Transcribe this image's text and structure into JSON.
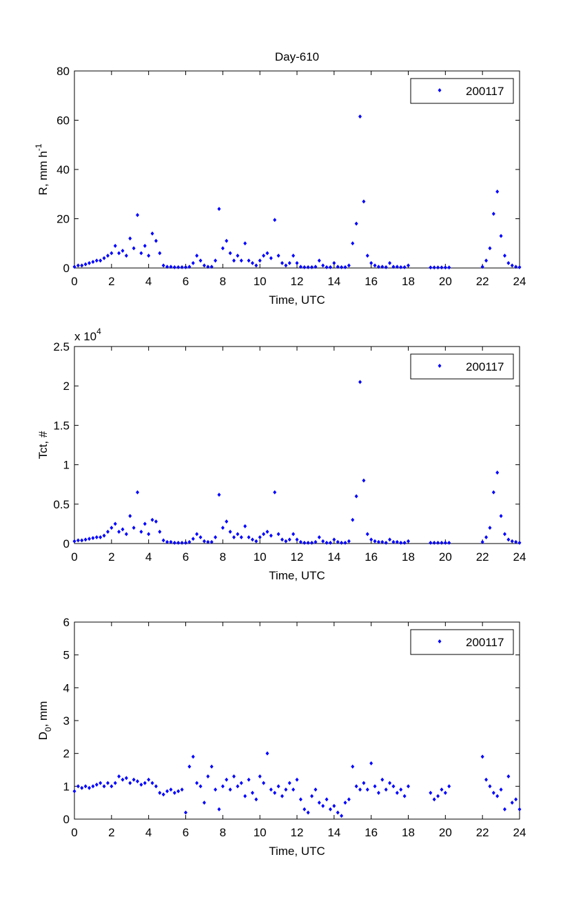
{
  "chart_data": [
    {
      "type": "scatter",
      "title": "Day-610",
      "ylabel": [
        "R, mm h",
        "-1"
      ],
      "xlabel": "Time, UTC",
      "xlim": [
        0,
        24
      ],
      "xticks": [
        0,
        2,
        4,
        6,
        8,
        10,
        12,
        14,
        16,
        18,
        20,
        22,
        24
      ],
      "ylim": [
        0,
        80
      ],
      "yticks": [
        0,
        20,
        40,
        60,
        80
      ],
      "grid": false,
      "legend": "ne",
      "series": [
        {
          "name": "200117",
          "color": "#0000ff",
          "x": [
            0,
            0.2,
            0.4,
            0.6,
            0.8,
            1,
            1.2,
            1.4,
            1.6,
            1.8,
            2,
            2.2,
            2.4,
            2.6,
            2.8,
            3,
            3.2,
            3.4,
            3.6,
            3.8,
            4,
            4.2,
            4.4,
            4.6,
            4.8,
            5,
            5.2,
            5.4,
            5.6,
            5.8,
            6,
            6.2,
            6.4,
            6.6,
            6.8,
            7,
            7.2,
            7.4,
            7.6,
            7.8,
            8,
            8.2,
            8.4,
            8.6,
            8.8,
            9,
            9.2,
            9.4,
            9.6,
            9.8,
            10,
            10.2,
            10.4,
            10.6,
            10.8,
            11,
            11.2,
            11.4,
            11.6,
            11.8,
            12,
            12.2,
            12.4,
            12.6,
            12.8,
            13,
            13.2,
            13.4,
            13.6,
            13.8,
            14,
            14.2,
            14.4,
            14.6,
            14.8,
            15,
            15.2,
            15.4,
            15.6,
            15.8,
            16,
            16.2,
            16.4,
            16.6,
            16.8,
            17,
            17.2,
            17.4,
            17.6,
            17.8,
            18,
            19.2,
            19.4,
            19.6,
            19.8,
            20,
            20.2,
            22,
            22.2,
            22.4,
            22.6,
            22.8,
            23,
            23.2,
            23.4,
            23.6,
            23.8,
            24
          ],
          "values": [
            0.5,
            1,
            1,
            1.5,
            2,
            2.5,
            3,
            3,
            4,
            5,
            6,
            9,
            6,
            7,
            5,
            12,
            8,
            21.5,
            6,
            9,
            5,
            14,
            11,
            6,
            1,
            0.5,
            0.5,
            0.3,
            0.3,
            0.3,
            0.3,
            0.5,
            2,
            5,
            3,
            1,
            0.5,
            0.5,
            3,
            24,
            8,
            11,
            6,
            3,
            5,
            3,
            10,
            3,
            2,
            1,
            3,
            5,
            6,
            4,
            19.5,
            5,
            2,
            1,
            2,
            5,
            2,
            0.5,
            0.3,
            0.3,
            0.3,
            0.5,
            3,
            1,
            0.3,
            0.3,
            2,
            0.5,
            0.3,
            0.3,
            1,
            10,
            18,
            61.5,
            27,
            5,
            2,
            1,
            0.5,
            0.5,
            0.3,
            2,
            0.5,
            0.5,
            0.3,
            0.3,
            1,
            0.2,
            0.2,
            0.2,
            0.2,
            0.2,
            0.2,
            0.5,
            3,
            8,
            22,
            31,
            13,
            5,
            2,
            1,
            0.5,
            0.3
          ]
        }
      ]
    },
    {
      "type": "scatter",
      "ylabel": "Tct, #",
      "xlabel": "Time, UTC",
      "y_multiplier": [
        "x 10",
        "4"
      ],
      "xlim": [
        0,
        24
      ],
      "xticks": [
        0,
        2,
        4,
        6,
        8,
        10,
        12,
        14,
        16,
        18,
        20,
        22,
        24
      ],
      "ylim": [
        0,
        2.5
      ],
      "yticks": [
        0,
        0.5,
        1,
        1.5,
        2,
        2.5
      ],
      "grid": false,
      "legend": "ne",
      "series": [
        {
          "name": "200117",
          "color": "#0000ff",
          "x": [
            0,
            0.2,
            0.4,
            0.6,
            0.8,
            1,
            1.2,
            1.4,
            1.6,
            1.8,
            2,
            2.2,
            2.4,
            2.6,
            2.8,
            3,
            3.2,
            3.4,
            3.6,
            3.8,
            4,
            4.2,
            4.4,
            4.6,
            4.8,
            5,
            5.2,
            5.4,
            5.6,
            5.8,
            6,
            6.2,
            6.4,
            6.6,
            6.8,
            7,
            7.2,
            7.4,
            7.6,
            7.8,
            8,
            8.2,
            8.4,
            8.6,
            8.8,
            9,
            9.2,
            9.4,
            9.6,
            9.8,
            10,
            10.2,
            10.4,
            10.6,
            10.8,
            11,
            11.2,
            11.4,
            11.6,
            11.8,
            12,
            12.2,
            12.4,
            12.6,
            12.8,
            13,
            13.2,
            13.4,
            13.6,
            13.8,
            14,
            14.2,
            14.4,
            14.6,
            14.8,
            15,
            15.2,
            15.4,
            15.6,
            15.8,
            16,
            16.2,
            16.4,
            16.6,
            16.8,
            17,
            17.2,
            17.4,
            17.6,
            17.8,
            18,
            19.2,
            19.4,
            19.6,
            19.8,
            20,
            20.2,
            22,
            22.2,
            22.4,
            22.6,
            22.8,
            23,
            23.2,
            23.4,
            23.6,
            23.8,
            24
          ],
          "values": [
            0.03,
            0.04,
            0.04,
            0.05,
            0.06,
            0.07,
            0.08,
            0.08,
            0.1,
            0.15,
            0.2,
            0.25,
            0.15,
            0.18,
            0.12,
            0.35,
            0.2,
            0.65,
            0.15,
            0.25,
            0.12,
            0.3,
            0.28,
            0.15,
            0.04,
            0.02,
            0.02,
            0.01,
            0.01,
            0.01,
            0.01,
            0.02,
            0.06,
            0.12,
            0.08,
            0.03,
            0.02,
            0.02,
            0.08,
            0.62,
            0.2,
            0.28,
            0.15,
            0.08,
            0.12,
            0.08,
            0.22,
            0.08,
            0.05,
            0.03,
            0.08,
            0.12,
            0.15,
            0.1,
            0.65,
            0.12,
            0.05,
            0.03,
            0.05,
            0.12,
            0.05,
            0.02,
            0.01,
            0.01,
            0.01,
            0.02,
            0.08,
            0.03,
            0.01,
            0.01,
            0.05,
            0.02,
            0.01,
            0.01,
            0.03,
            0.3,
            0.6,
            2.05,
            0.8,
            0.12,
            0.05,
            0.03,
            0.02,
            0.02,
            0.01,
            0.05,
            0.02,
            0.02,
            0.01,
            0.01,
            0.03,
            0.01,
            0.01,
            0.01,
            0.01,
            0.01,
            0.01,
            0.02,
            0.08,
            0.2,
            0.65,
            0.9,
            0.35,
            0.12,
            0.05,
            0.03,
            0.02,
            0.01
          ]
        }
      ]
    },
    {
      "type": "scatter",
      "ylabel": [
        "D",
        "0",
        ", mm"
      ],
      "xlabel": "Time, UTC",
      "xlim": [
        0,
        24
      ],
      "xticks": [
        0,
        2,
        4,
        6,
        8,
        10,
        12,
        14,
        16,
        18,
        20,
        22,
        24
      ],
      "ylim": [
        0,
        6
      ],
      "yticks": [
        0,
        1,
        2,
        3,
        4,
        5,
        6
      ],
      "grid": false,
      "legend": "ne",
      "series": [
        {
          "name": "200117",
          "color": "#0000ff",
          "x": [
            0,
            0.2,
            0.4,
            0.6,
            0.8,
            1,
            1.2,
            1.4,
            1.6,
            1.8,
            2,
            2.2,
            2.4,
            2.6,
            2.8,
            3,
            3.2,
            3.4,
            3.6,
            3.8,
            4,
            4.2,
            4.4,
            4.6,
            4.8,
            5,
            5.2,
            5.4,
            5.6,
            5.8,
            6,
            6.2,
            6.4,
            6.6,
            6.8,
            7,
            7.2,
            7.4,
            7.6,
            7.8,
            8,
            8.2,
            8.4,
            8.6,
            8.8,
            9,
            9.2,
            9.4,
            9.6,
            9.8,
            10,
            10.2,
            10.4,
            10.6,
            10.8,
            11,
            11.2,
            11.4,
            11.6,
            11.8,
            12,
            12.2,
            12.4,
            12.6,
            12.8,
            13,
            13.2,
            13.4,
            13.6,
            13.8,
            14,
            14.2,
            14.4,
            14.6,
            14.8,
            15,
            15.2,
            15.4,
            15.6,
            15.8,
            16,
            16.2,
            16.4,
            16.6,
            16.8,
            17,
            17.2,
            17.4,
            17.6,
            17.8,
            18,
            19.2,
            19.4,
            19.6,
            19.8,
            20,
            20.2,
            22,
            22.2,
            22.4,
            22.6,
            22.8,
            23,
            23.2,
            23.4,
            23.6,
            23.8,
            24
          ],
          "values": [
            0.85,
            1,
            0.95,
            1,
            0.95,
            1,
            1.05,
            1.1,
            1,
            1.1,
            1,
            1.1,
            1.3,
            1.2,
            1.25,
            1.1,
            1.2,
            1.15,
            1.05,
            1.1,
            1.2,
            1.1,
            1,
            0.8,
            0.75,
            0.85,
            0.9,
            0.8,
            0.85,
            0.9,
            0.2,
            1.6,
            1.9,
            1.1,
            1,
            0.5,
            1.3,
            1.6,
            0.9,
            0.3,
            1,
            1.2,
            0.9,
            1.3,
            1,
            1.1,
            0.7,
            1.2,
            0.8,
            0.6,
            1.3,
            1.1,
            2,
            0.9,
            0.8,
            1,
            0.7,
            0.9,
            1.1,
            0.9,
            1.2,
            0.6,
            0.3,
            0.2,
            0.7,
            0.9,
            0.5,
            0.4,
            0.6,
            0.3,
            0.4,
            0.2,
            0.1,
            0.5,
            0.6,
            1.6,
            1,
            0.9,
            1.1,
            0.9,
            1.7,
            1,
            0.8,
            1.2,
            0.9,
            1.1,
            1,
            0.8,
            0.9,
            0.7,
            1,
            0.8,
            0.6,
            0.7,
            0.9,
            0.8,
            1,
            1.9,
            1.2,
            1,
            0.8,
            0.7,
            0.9,
            0.3,
            1.3,
            0.5,
            0.6,
            0.3
          ]
        }
      ]
    }
  ]
}
